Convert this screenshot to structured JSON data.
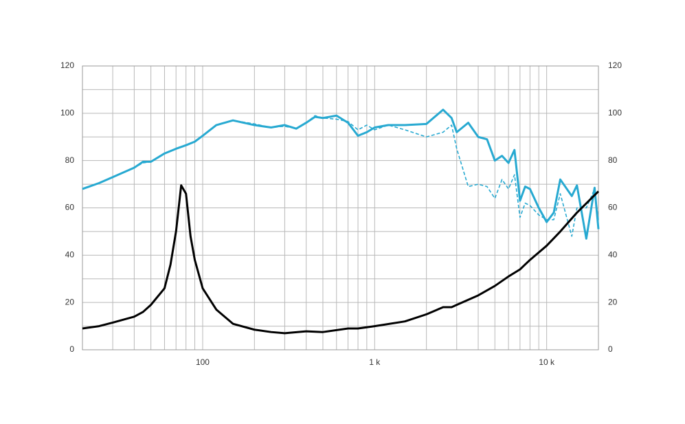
{
  "chart_data": {
    "type": "line",
    "xscale": "log",
    "xlim": [
      20,
      20000
    ],
    "xticks": [
      {
        "value": 100,
        "label": "100"
      },
      {
        "value": 1000,
        "label": "1 k"
      },
      {
        "value": 10000,
        "label": "10 k"
      }
    ],
    "x_minor_ticks": [
      30,
      40,
      50,
      60,
      70,
      80,
      90,
      200,
      300,
      400,
      500,
      600,
      700,
      800,
      900,
      2000,
      3000,
      4000,
      5000,
      6000,
      7000,
      8000,
      9000
    ],
    "ylim": [
      0,
      120
    ],
    "yticks": [
      0,
      20,
      40,
      60,
      80,
      100,
      120
    ],
    "y_minor_ticks": [
      10,
      30,
      50,
      70,
      90,
      110
    ],
    "y2lim": [
      0,
      120
    ],
    "y2ticks": [
      0,
      20,
      40,
      60,
      80,
      100,
      120
    ],
    "grid": true,
    "series": [
      {
        "color": "#27a9d1",
        "dash": false,
        "x": [
          20,
          25,
          30,
          40,
          45,
          50,
          60,
          70,
          80,
          90,
          100,
          120,
          150,
          200,
          250,
          300,
          350,
          400,
          450,
          500,
          600,
          700,
          800,
          900,
          1000,
          1200,
          1500,
          2000,
          2500,
          2800,
          3000,
          3500,
          4000,
          4500,
          5000,
          5500,
          6000,
          6500,
          7000,
          7500,
          8000,
          9000,
          10000,
          11000,
          12000,
          14000,
          15000,
          17000,
          19000,
          20000
        ],
        "values": [
          68,
          70.5,
          73,
          77,
          79.5,
          79.5,
          83,
          85,
          86.5,
          88,
          90.5,
          95,
          97,
          95,
          94,
          95,
          93.5,
          96,
          98.5,
          98,
          99,
          96,
          90.5,
          92,
          94,
          95,
          95,
          95.5,
          101.5,
          98,
          92,
          96,
          90,
          89,
          80,
          82,
          79,
          84.5,
          63,
          69,
          68,
          60,
          54,
          58,
          72,
          65,
          69.5,
          47,
          68.5,
          51
        ]
      },
      {
        "color": "#27a9d1",
        "dash": true,
        "x": [
          20,
          25,
          30,
          40,
          45,
          50,
          60,
          70,
          80,
          90,
          100,
          120,
          150,
          200,
          250,
          300,
          350,
          400,
          450,
          500,
          600,
          700,
          800,
          900,
          1000,
          1200,
          1500,
          2000,
          2500,
          2800,
          3000,
          3500,
          4000,
          4500,
          5000,
          5500,
          6000,
          6500,
          7000,
          7500,
          8000,
          9000,
          10000,
          11000,
          12000,
          14000,
          15000,
          17000,
          19000,
          20000
        ],
        "values": [
          68,
          70.5,
          73,
          77,
          79,
          79.5,
          83,
          85,
          86.5,
          88,
          90.5,
          95,
          97,
          95.5,
          94,
          94.5,
          93.5,
          96,
          99,
          98,
          97.5,
          96.5,
          93,
          95,
          93,
          95,
          93,
          90,
          92,
          95,
          85,
          69,
          70,
          69,
          64,
          72,
          68,
          74,
          56,
          62,
          61,
          57,
          55,
          55,
          66,
          48,
          60,
          60,
          68,
          55
        ]
      },
      {
        "color": "#000000",
        "dash": false,
        "axis": "y2",
        "x": [
          20,
          25,
          30,
          40,
          45,
          50,
          60,
          65,
          70,
          75,
          80,
          85,
          90,
          100,
          120,
          150,
          200,
          250,
          300,
          400,
          500,
          700,
          800,
          1000,
          1500,
          2000,
          2500,
          2800,
          3000,
          4000,
          5000,
          6000,
          7000,
          8000,
          10000,
          12000,
          15000,
          20000
        ],
        "values": [
          9,
          10,
          11.5,
          14,
          16,
          19,
          26,
          36,
          50,
          69.5,
          66,
          48,
          38,
          26,
          17,
          11,
          8.5,
          7.5,
          7,
          7.8,
          7.5,
          9,
          9,
          10,
          12,
          15,
          18,
          18,
          19,
          23,
          27,
          31,
          34,
          38,
          44,
          50,
          58,
          67
        ]
      }
    ]
  }
}
